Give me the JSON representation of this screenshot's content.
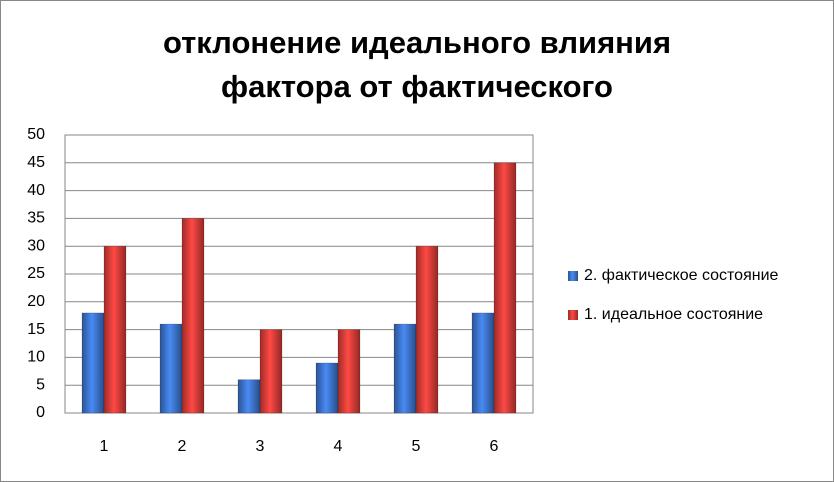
{
  "chart_data": {
    "type": "bar",
    "title": [
      "отклонение идеального влияния",
      "фактора от фактического"
    ],
    "categories": [
      "1",
      "2",
      "3",
      "4",
      "5",
      "6"
    ],
    "series": [
      {
        "name": "2. фактическое состояние",
        "color": "#3a6fc4",
        "values": [
          18,
          16,
          6,
          9,
          16,
          18
        ]
      },
      {
        "name": "1. идеальное состояние",
        "color": "#d23a36",
        "values": [
          30,
          35,
          15,
          15,
          30,
          45
        ]
      }
    ],
    "ylim": [
      0,
      50
    ],
    "yticks": [
      0,
      5,
      10,
      15,
      20,
      25,
      30,
      35,
      40,
      45,
      50
    ],
    "grid": true,
    "legend": "right"
  }
}
